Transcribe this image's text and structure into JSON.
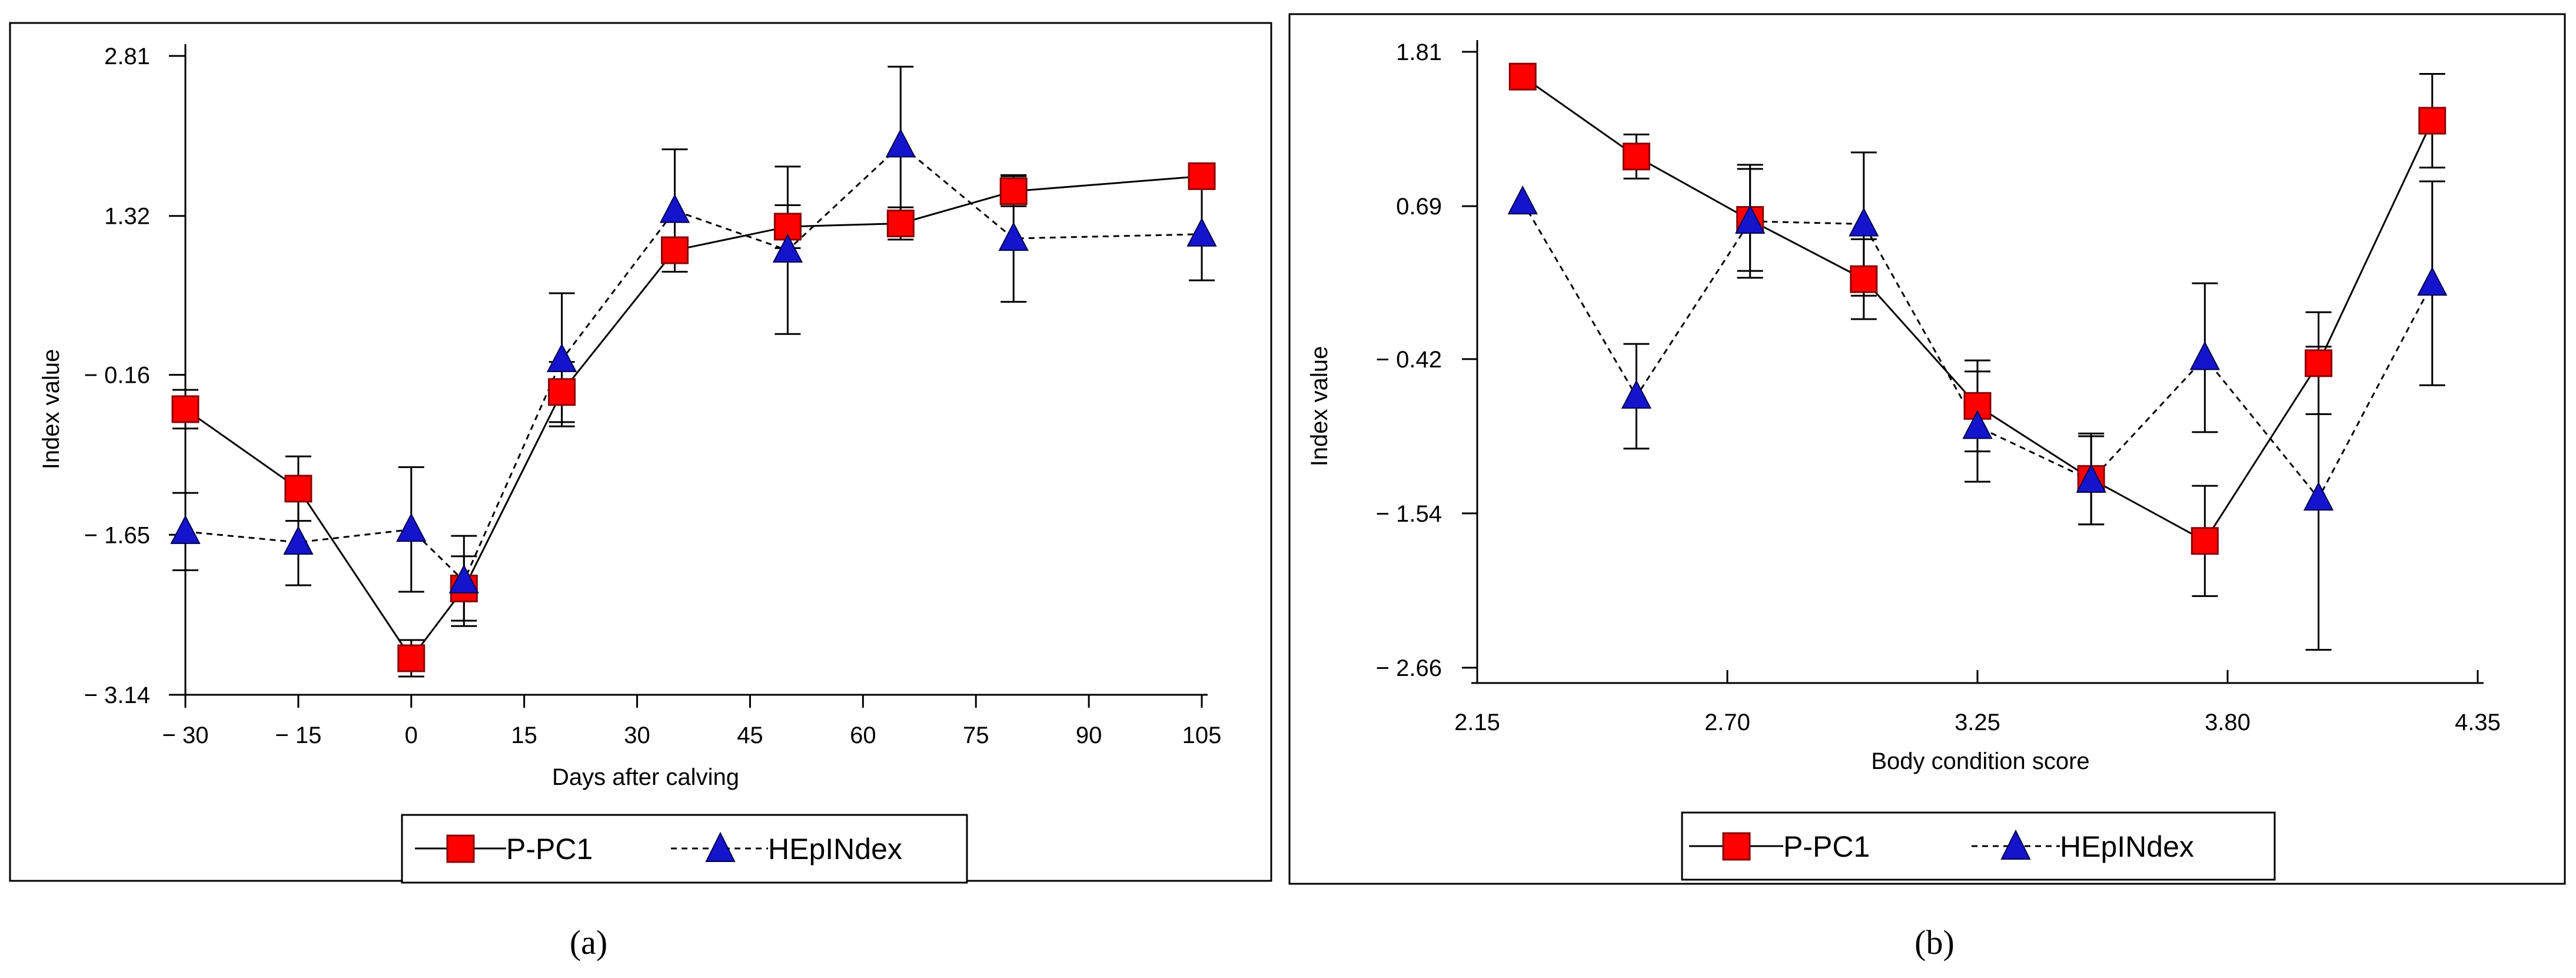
{
  "chart_data": [
    {
      "type": "line",
      "panel": "a",
      "caption": "(a)",
      "xlabel": "Days after calving",
      "ylabel": "Index value",
      "xlim": [
        -30,
        105
      ],
      "ylim": [
        -3.14,
        2.81
      ],
      "xticks": [
        -30,
        -15,
        0,
        15,
        30,
        45,
        60,
        75,
        90,
        105
      ],
      "xtick_labels": [
        "− 30",
        "− 15",
        "0",
        "15",
        "30",
        "45",
        "60",
        "75",
        "90",
        "105"
      ],
      "yticks": [
        2.81,
        1.32,
        -0.16,
        -1.65,
        -3.14
      ],
      "ytick_labels": [
        "2.81",
        "1.32",
        "− 0.16",
        "− 1.65",
        "− 3.14"
      ],
      "legend_position": "bottom-center",
      "series": [
        {
          "name": "P-PC1",
          "marker": "square",
          "line": "solid",
          "x": [
            -30,
            -15,
            0,
            7,
            20,
            35,
            50,
            65,
            80,
            105
          ],
          "y": [
            -0.48,
            -1.22,
            -2.8,
            -2.15,
            -0.32,
            1.0,
            1.22,
            1.25,
            1.55,
            1.69
          ],
          "err": [
            0.18,
            0.3,
            0.17,
            0.3,
            0.28,
            0.12,
            0.2,
            0.15,
            0.14,
            0.1
          ]
        },
        {
          "name": "HEpINdex",
          "marker": "triangle",
          "line": "dashed",
          "x": [
            -30,
            -15,
            0,
            7,
            20,
            35,
            50,
            65,
            80,
            105
          ],
          "y": [
            -1.62,
            -1.72,
            -1.6,
            -2.08,
            -0.02,
            1.37,
            1.0,
            1.98,
            1.11,
            1.15
          ],
          "err": [
            0.36,
            0.4,
            0.58,
            0.42,
            0.62,
            0.57,
            0.78,
            0.73,
            0.59,
            0.43
          ]
        }
      ]
    },
    {
      "type": "line",
      "panel": "b",
      "caption": "(b)",
      "xlabel": "Body condition  score",
      "ylabel": "Index value",
      "xlim": [
        2.15,
        4.35
      ],
      "ylim": [
        -2.66,
        1.81
      ],
      "xticks": [
        2.15,
        2.7,
        3.25,
        3.8,
        4.35
      ],
      "xtick_labels": [
        "2.15",
        "2.70",
        "3.25",
        "3.80",
        "4.35"
      ],
      "yticks": [
        1.81,
        0.69,
        -0.42,
        -1.54,
        -2.66
      ],
      "ytick_labels": [
        "1.81",
        "0.69",
        "− 0.42",
        "− 1.54",
        "− 2.66"
      ],
      "legend_position": "bottom-center",
      "series": [
        {
          "name": "P-PC1",
          "marker": "square",
          "line": "solid",
          "x": [
            2.25,
            2.5,
            2.75,
            3.0,
            3.25,
            3.5,
            3.75,
            4.0,
            4.25
          ],
          "y": [
            1.63,
            1.05,
            0.59,
            0.16,
            -0.76,
            -1.29,
            -1.74,
            -0.45,
            1.31
          ],
          "err": [
            0.0,
            0.16,
            0.37,
            0.29,
            0.33,
            0.33,
            0.4,
            0.37,
            0.34
          ]
        },
        {
          "name": "HEpINdex",
          "marker": "triangle",
          "line": "dashed",
          "x": [
            2.25,
            2.5,
            2.75,
            3.0,
            3.25,
            3.5,
            3.75,
            4.0,
            4.25
          ],
          "y": [
            0.72,
            -0.69,
            0.58,
            0.56,
            -0.91,
            -1.3,
            -0.41,
            -1.43,
            0.13
          ],
          "err": [
            0.0,
            0.38,
            0.41,
            0.52,
            0.4,
            0.32,
            0.54,
            1.1,
            0.74
          ]
        }
      ]
    }
  ]
}
